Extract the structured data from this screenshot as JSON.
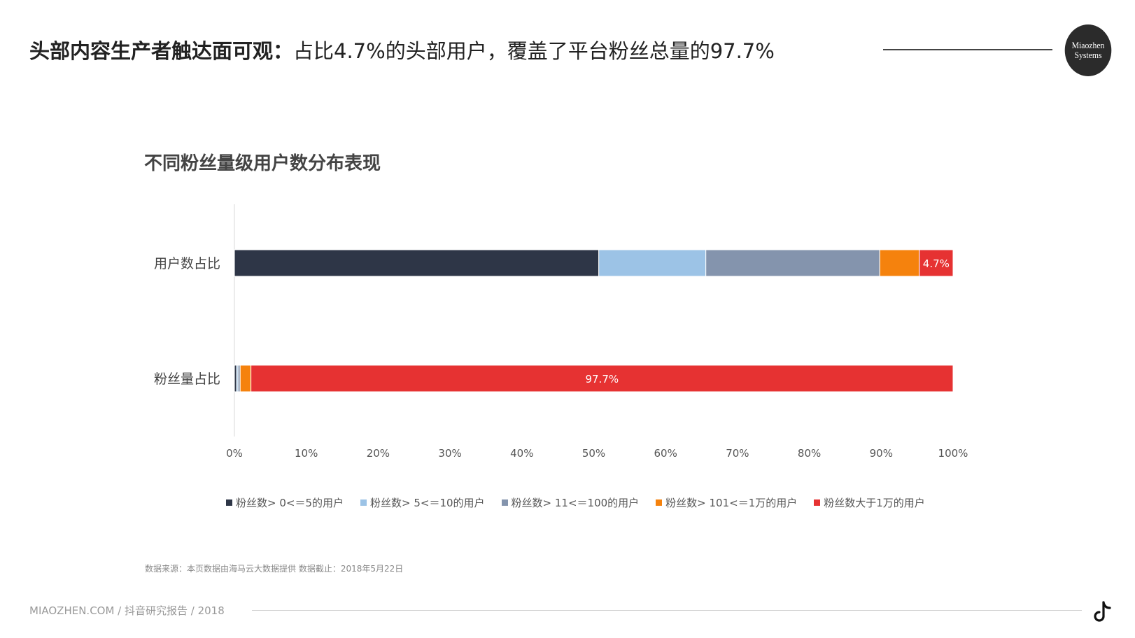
{
  "header": {
    "title_bold": "头部内容生产者触达面可观：",
    "title_rest": "占比4.7%的头部用户，覆盖了平台粉丝总量的97.7%"
  },
  "logo": {
    "line1": "Miaozhen",
    "line2": "Systems"
  },
  "chart_data": {
    "type": "bar",
    "orientation": "horizontal",
    "stacked": "100%",
    "title": "不同粉丝量级用户数分布表现",
    "categories": [
      "用户数占比",
      "粉丝量占比"
    ],
    "series": [
      {
        "name": "粉丝数> 0<＝5的用户",
        "color": "#2e3647",
        "values": [
          50.7,
          0.3
        ]
      },
      {
        "name": "粉丝数> 5<＝10的用户",
        "color": "#9cc3e6",
        "values": [
          14.9,
          0.2
        ]
      },
      {
        "name": "粉丝数> 11<＝100的用户",
        "color": "#8494ad",
        "values": [
          24.2,
          0.3
        ]
      },
      {
        "name": "粉丝数> 101<＝1万的用户",
        "color": "#f5820d",
        "values": [
          5.5,
          1.5
        ]
      },
      {
        "name": "粉丝数大于1万的用户",
        "color": "#e63232",
        "values": [
          4.7,
          97.7
        ]
      }
    ],
    "data_labels": [
      {
        "category": "用户数占比",
        "series": "粉丝数大于1万的用户",
        "text": "4.7%"
      },
      {
        "category": "粉丝量占比",
        "series": "粉丝数大于1万的用户",
        "text": "97.7%"
      }
    ],
    "xlim": [
      0,
      100
    ],
    "xticks": [
      "0%",
      "10%",
      "20%",
      "30%",
      "40%",
      "50%",
      "60%",
      "70%",
      "80%",
      "90%",
      "100%"
    ],
    "grid": false,
    "legend_position": "bottom"
  },
  "source": "数据来源：本页数据由海马云大数据提供 数据截止：2018年5月22日",
  "footer": "MIAOZHEN.COM / 抖音研究报告 / 2018",
  "icons": {
    "brand_logo": "miaozhen-logo-icon",
    "corner": "tiktok-icon"
  }
}
